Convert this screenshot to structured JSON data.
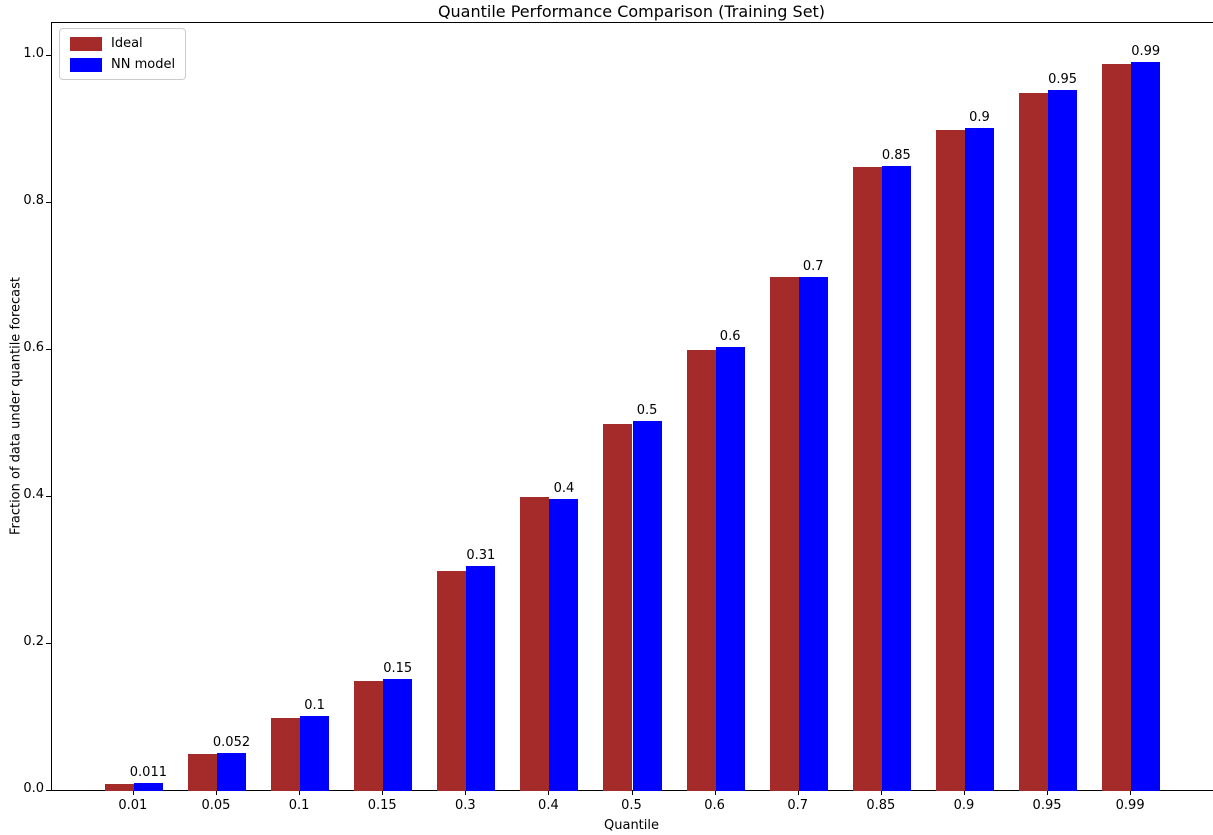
{
  "chart_data": {
    "type": "bar",
    "title": "Quantile Performance Comparison (Training Set)",
    "xlabel": "Quantile",
    "ylabel": "Fraction of data under quantile forecast",
    "categories": [
      "0.01",
      "0.05",
      "0.1",
      "0.15",
      "0.3",
      "0.4",
      "0.5",
      "0.6",
      "0.7",
      "0.85",
      "0.9",
      "0.95",
      "0.99"
    ],
    "series": [
      {
        "name": "Ideal",
        "color": "#a52a2a",
        "values": [
          0.01,
          0.05,
          0.1,
          0.15,
          0.3,
          0.4,
          0.5,
          0.6,
          0.7,
          0.85,
          0.9,
          0.95,
          0.99
        ]
      },
      {
        "name": "NN model",
        "color": "#0000ff",
        "values": [
          0.011,
          0.052,
          0.102,
          0.153,
          0.306,
          0.398,
          0.504,
          0.605,
          0.7,
          0.851,
          0.903,
          0.955,
          0.992
        ]
      }
    ],
    "bar_labels": [
      "0.011",
      "0.052",
      "0.1",
      "0.15",
      "0.31",
      "0.4",
      "0.5",
      "0.6",
      "0.7",
      "0.85",
      "0.9",
      "0.95",
      "0.99"
    ],
    "y_ticks": [
      "0.0",
      "0.2",
      "0.4",
      "0.6",
      "0.8",
      "1.0"
    ],
    "ylim": [
      0,
      1.0456
    ],
    "xlim": [
      -0.985,
      12.985
    ],
    "bar_width_units": 0.35,
    "grid": false,
    "legend_position": "upper left",
    "axis_color": "#000000",
    "text_color": "#000000",
    "background_color": "#ffffff"
  }
}
